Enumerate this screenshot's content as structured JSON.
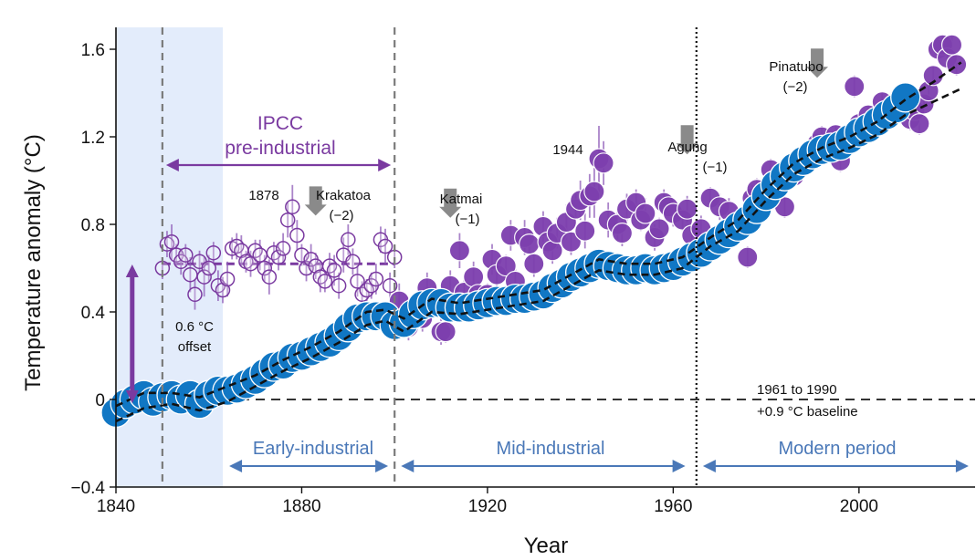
{
  "chart_data": {
    "type": "scatter",
    "title": "",
    "xlabel": "Year",
    "ylabel": "Temperature anomaly (°C)",
    "xlim": [
      1840,
      2025
    ],
    "ylim": [
      -0.4,
      1.7
    ],
    "x_ticks": [
      1840,
      1880,
      1920,
      1960,
      2000
    ],
    "y_ticks": [
      {
        "value": -0.4,
        "label": "−0.4"
      },
      {
        "value": 0,
        "label": "0"
      },
      {
        "value": 0.4,
        "label": "0.4"
      },
      {
        "value": 0.8,
        "label": "0.8"
      },
      {
        "value": 1.2,
        "label": "1.2"
      },
      {
        "value": 1.6,
        "label": "1.6"
      }
    ],
    "shaded_region": {
      "x_start": 1840,
      "x_end": 1863
    },
    "vertical_lines": [
      {
        "x": 1850,
        "style": "dashed"
      },
      {
        "x": 1900,
        "style": "dashed"
      },
      {
        "x": 1965,
        "style": "dotted"
      }
    ],
    "baseline": {
      "y": 0,
      "label_line1": "1961 to 1990",
      "label_line2": "+0.9 °C baseline"
    },
    "ipcc": {
      "line1": "IPCC",
      "line2": "pre-industrial",
      "x_start": 1850,
      "x_end": 1900
    },
    "offset": {
      "y_start": 0,
      "y_end": 0.6,
      "line1": "0.6 °C",
      "line2": "offset"
    },
    "periods": [
      {
        "label": "Early-industrial",
        "x_start": 1864,
        "x_end": 1899
      },
      {
        "label": "Mid-industrial",
        "x_start": 1901,
        "x_end": 1963
      },
      {
        "label": "Modern period",
        "x_start": 1966,
        "x_end": 2024
      }
    ],
    "volcanoes": [
      {
        "name": "Krakatoa",
        "effect": "(−2)",
        "year": 1883,
        "arrow_y": 0.84
      },
      {
        "name": "Katmai",
        "effect": "(−1)",
        "year": 1912,
        "arrow_y": 0.83
      },
      {
        "name": "Agung",
        "effect": "(−1)",
        "year": 1963,
        "arrow_y": 1.12
      },
      {
        "name": "Pinatubo",
        "effect": "(−2)",
        "year": 1991,
        "arrow_y": 1.47
      }
    ],
    "year_labels": [
      {
        "label": "1878",
        "year": 1871,
        "y": 0.92
      },
      {
        "label": "1944",
        "year": 1936,
        "y": 1.12
      }
    ],
    "series": [
      {
        "name": "Sponge record (open circles, pre-industrial)",
        "style": "open-purple",
        "x": [
          1850,
          1851,
          1852,
          1853,
          1854,
          1855,
          1856,
          1857,
          1858,
          1859,
          1860,
          1861,
          1862,
          1863,
          1864,
          1865,
          1866,
          1867,
          1868,
          1869,
          1870,
          1871,
          1872,
          1873,
          1874,
          1875,
          1876,
          1877,
          1878,
          1879,
          1880,
          1881,
          1882,
          1883,
          1884,
          1885,
          1886,
          1887,
          1888,
          1889,
          1890,
          1891,
          1892,
          1893,
          1894,
          1895,
          1896,
          1897,
          1898,
          1899,
          1900
        ],
        "y": [
          0.6,
          0.71,
          0.72,
          0.66,
          0.63,
          0.66,
          0.57,
          0.48,
          0.63,
          0.56,
          0.6,
          0.67,
          0.52,
          0.5,
          0.55,
          0.69,
          0.7,
          0.68,
          0.63,
          0.62,
          0.68,
          0.66,
          0.6,
          0.56,
          0.67,
          0.65,
          0.69,
          0.82,
          0.88,
          0.75,
          0.66,
          0.6,
          0.64,
          0.61,
          0.56,
          0.54,
          0.61,
          0.59,
          0.52,
          0.66,
          0.73,
          0.63,
          0.54,
          0.48,
          0.5,
          0.52,
          0.55,
          0.73,
          0.7,
          0.52,
          0.65
        ],
        "err": [
          0.05,
          0.06,
          0.08,
          0.05,
          0.06,
          0.05,
          0.08,
          0.07,
          0.05,
          0.09,
          0.06,
          0.05,
          0.07,
          0.06,
          0.08,
          0.05,
          0.06,
          0.07,
          0.05,
          0.06,
          0.05,
          0.07,
          0.06,
          0.08,
          0.05,
          0.06,
          0.07,
          0.08,
          0.1,
          0.07,
          0.05,
          0.06,
          0.07,
          0.06,
          0.07,
          0.05,
          0.06,
          0.07,
          0.06,
          0.08,
          0.07,
          0.06,
          0.07,
          0.06,
          0.05,
          0.06,
          0.07,
          0.06,
          0.08,
          0.06,
          0.05
        ]
      },
      {
        "name": "Sponge record (filled purple, post-1900)",
        "style": "filled-purple",
        "x": [
          1901,
          1903,
          1905,
          1906,
          1907,
          1909,
          1910,
          1911,
          1912,
          1914,
          1915,
          1917,
          1918,
          1920,
          1921,
          1922,
          1924,
          1925,
          1926,
          1928,
          1929,
          1930,
          1932,
          1933,
          1934,
          1935,
          1937,
          1938,
          1939,
          1940,
          1941,
          1942,
          1943,
          1944,
          1945,
          1946,
          1948,
          1949,
          1950,
          1952,
          1953,
          1954,
          1956,
          1957,
          1958,
          1959,
          1960,
          1962,
          1963,
          1964,
          1966,
          1968,
          1970,
          1971,
          1972,
          1974,
          1976,
          1977,
          1978,
          1979,
          1981,
          1982,
          1983,
          1984,
          1986,
          1987,
          1988,
          1990,
          1991,
          1992,
          1993,
          1994,
          1995,
          1996,
          1998,
          1999,
          2000,
          2001,
          2002,
          2004,
          2005,
          2006,
          2008,
          2009,
          2010,
          2011,
          2012,
          2013,
          2014,
          2015,
          2016,
          2017,
          2018,
          2019,
          2020,
          2021
        ],
        "y": [
          0.45,
          0.33,
          0.44,
          0.37,
          0.51,
          0.44,
          0.31,
          0.31,
          0.52,
          0.68,
          0.49,
          0.56,
          0.48,
          0.48,
          0.64,
          0.57,
          0.61,
          0.75,
          0.54,
          0.74,
          0.71,
          0.62,
          0.79,
          0.72,
          0.68,
          0.76,
          0.81,
          0.72,
          0.87,
          0.91,
          0.77,
          0.93,
          0.95,
          1.1,
          1.08,
          0.82,
          0.8,
          0.76,
          0.87,
          0.9,
          0.82,
          0.85,
          0.74,
          0.78,
          0.9,
          0.88,
          0.85,
          0.82,
          0.87,
          0.75,
          0.78,
          0.92,
          0.88,
          0.75,
          0.86,
          0.81,
          0.65,
          0.92,
          0.96,
          0.92,
          1.05,
          1.0,
          0.98,
          0.88,
          1.02,
          1.06,
          1.1,
          1.12,
          1.17,
          1.2,
          1.13,
          1.16,
          1.21,
          1.09,
          1.18,
          1.43,
          1.26,
          1.24,
          1.3,
          1.28,
          1.36,
          1.32,
          1.31,
          1.34,
          1.38,
          1.28,
          1.32,
          1.26,
          1.35,
          1.41,
          1.48,
          1.6,
          1.62,
          1.56,
          1.62,
          1.53
        ],
        "err": [
          0.08,
          0.06,
          0.07,
          0.06,
          0.07,
          0.05,
          0.06,
          0.05,
          0.07,
          0.08,
          0.06,
          0.07,
          0.06,
          0.05,
          0.07,
          0.06,
          0.05,
          0.07,
          0.06,
          0.08,
          0.07,
          0.06,
          0.07,
          0.05,
          0.06,
          0.07,
          0.08,
          0.06,
          0.07,
          0.09,
          0.08,
          0.1,
          0.12,
          0.15,
          0.1,
          0.08,
          0.07,
          0.06,
          0.07,
          0.06,
          0.05,
          0.07,
          0.06,
          0.05,
          0.06,
          0.05,
          0.06,
          0.05,
          0.06,
          0.05,
          0.06,
          0.05,
          0.06,
          0.05,
          0.06,
          0.05,
          0.05,
          0.06,
          0.05,
          0.06,
          0.05,
          0.05,
          0.04,
          0.05,
          0.04,
          0.05,
          0.04,
          0.05,
          0.04,
          0.05,
          0.04,
          0.05,
          0.04,
          0.05,
          0.04,
          0.05,
          0.04,
          0.05,
          0.04,
          0.05,
          0.04,
          0.05,
          0.04,
          0.05,
          0.04,
          0.05,
          0.04,
          0.05,
          0.04,
          0.05,
          0.04,
          0.05,
          0.04,
          0.05,
          0.04,
          0.05
        ]
      },
      {
        "name": "Instrumental record (blue circles)",
        "style": "filled-blue",
        "x": [
          1840,
          1842,
          1844,
          1846,
          1848,
          1850,
          1852,
          1854,
          1856,
          1858,
          1860,
          1862,
          1864,
          1866,
          1868,
          1870,
          1872,
          1874,
          1876,
          1878,
          1880,
          1882,
          1884,
          1886,
          1888,
          1890,
          1892,
          1894,
          1896,
          1898,
          1900,
          1902,
          1904,
          1906,
          1908,
          1910,
          1912,
          1914,
          1916,
          1918,
          1920,
          1922,
          1924,
          1926,
          1928,
          1930,
          1932,
          1934,
          1936,
          1938,
          1940,
          1942,
          1944,
          1946,
          1948,
          1950,
          1952,
          1954,
          1956,
          1958,
          1960,
          1962,
          1964,
          1966,
          1968,
          1970,
          1972,
          1974,
          1976,
          1978,
          1980,
          1982,
          1984,
          1986,
          1988,
          1990,
          1992,
          1994,
          1996,
          1998,
          2000,
          2002,
          2004,
          2006,
          2008,
          2010
        ],
        "y": [
          -0.06,
          -0.02,
          0.0,
          0.02,
          -0.01,
          0.01,
          0.02,
          0.0,
          0.02,
          -0.02,
          0.02,
          0.04,
          0.04,
          0.05,
          0.07,
          0.09,
          0.12,
          0.15,
          0.16,
          0.19,
          0.2,
          0.22,
          0.24,
          0.26,
          0.29,
          0.33,
          0.37,
          0.38,
          0.38,
          0.38,
          0.34,
          0.35,
          0.39,
          0.43,
          0.44,
          0.44,
          0.42,
          0.42,
          0.42,
          0.43,
          0.44,
          0.45,
          0.45,
          0.46,
          0.46,
          0.47,
          0.48,
          0.51,
          0.53,
          0.56,
          0.58,
          0.6,
          0.62,
          0.61,
          0.6,
          0.59,
          0.59,
          0.6,
          0.59,
          0.6,
          0.61,
          0.63,
          0.65,
          0.67,
          0.7,
          0.73,
          0.76,
          0.79,
          0.82,
          0.87,
          0.93,
          0.98,
          1.02,
          1.06,
          1.09,
          1.12,
          1.14,
          1.15,
          1.16,
          1.19,
          1.22,
          1.24,
          1.27,
          1.3,
          1.33,
          1.38
        ],
        "err": [
          0.04,
          0.04,
          0.04,
          0.04,
          0.05,
          0.04,
          0.04,
          0.04,
          0.04,
          0.05,
          0.04,
          0.04,
          0.04,
          0.04,
          0.04,
          0.04,
          0.04,
          0.04,
          0.04,
          0.04,
          0.04,
          0.04,
          0.04,
          0.04,
          0.04,
          0.04,
          0.04,
          0.04,
          0.04,
          0.04,
          0.04,
          0.04,
          0.04,
          0.04,
          0.04,
          0.05,
          0.05,
          0.04,
          0.04,
          0.04,
          0.04,
          0.04,
          0.04,
          0.04,
          0.04,
          0.04,
          0.04,
          0.04,
          0.04,
          0.04,
          0.04,
          0.04,
          0.04,
          0.04,
          0.04,
          0.04,
          0.04,
          0.04,
          0.04,
          0.04,
          0.04,
          0.04,
          0.04,
          0.04,
          0.04,
          0.04,
          0.04,
          0.04,
          0.04,
          0.04,
          0.04,
          0.04,
          0.04,
          0.04,
          0.04,
          0.04,
          0.04,
          0.04,
          0.04,
          0.04,
          0.04,
          0.04,
          0.04,
          0.04,
          0.04,
          0.04
        ]
      }
    ],
    "trend_lines": [
      {
        "name": "Pre-industrial mean",
        "x": [
          1850,
          1900
        ],
        "y": [
          0.62,
          0.62
        ]
      },
      {
        "name": "Instrumental smoothed (upper)",
        "x": [
          1840,
          1846,
          1852,
          1858,
          1864,
          1870,
          1876,
          1882,
          1888,
          1894,
          1898,
          1902,
          1908,
          1914,
          1920,
          1926,
          1932,
          1938,
          1944,
          1950,
          1956,
          1962,
          1968,
          1974,
          1980,
          1986,
          1992,
          1998,
          2004,
          2010,
          2016,
          2022
        ],
        "y": [
          -0.03,
          0.03,
          0.03,
          0.01,
          0.06,
          0.11,
          0.18,
          0.24,
          0.31,
          0.4,
          0.41,
          0.37,
          0.46,
          0.44,
          0.46,
          0.48,
          0.5,
          0.57,
          0.64,
          0.62,
          0.62,
          0.65,
          0.74,
          0.82,
          0.96,
          1.08,
          1.15,
          1.2,
          1.27,
          1.37,
          1.45,
          1.54
        ]
      },
      {
        "name": "Instrumental smoothed (lower)",
        "x": [
          1840,
          1846,
          1852,
          1858,
          1864,
          1870,
          1876,
          1882,
          1888,
          1894,
          1898,
          1902,
          1908,
          1914,
          1920,
          1926,
          1932,
          1938,
          1944,
          1950,
          1956,
          1962,
          1968,
          1974,
          1980,
          1986,
          1992,
          1998,
          2004,
          2010,
          2016,
          2022
        ],
        "y": [
          -0.1,
          -0.04,
          -0.02,
          -0.05,
          -0.01,
          0.06,
          0.13,
          0.19,
          0.26,
          0.34,
          0.36,
          0.31,
          0.4,
          0.39,
          0.41,
          0.43,
          0.45,
          0.52,
          0.59,
          0.57,
          0.57,
          0.6,
          0.7,
          0.77,
          0.91,
          1.03,
          1.1,
          1.15,
          1.21,
          1.3,
          1.36,
          1.42
        ]
      }
    ]
  }
}
